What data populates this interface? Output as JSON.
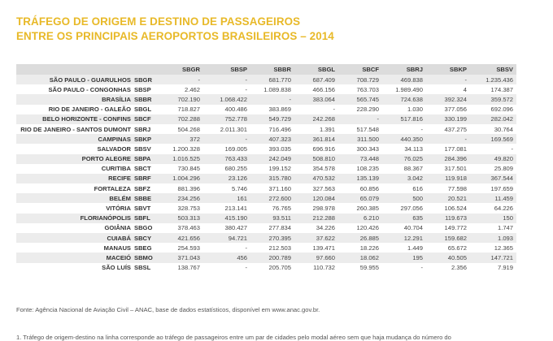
{
  "title": {
    "line1": "TRÁFEGO DE ORIGEM E DESTINO DE PASSAGEIROS",
    "line2": "ENTRE OS PRINCIPAIS AEROPORTOS BRASILEIROS – 2014"
  },
  "columns": [
    "SBGR",
    "SBSP",
    "SBBR",
    "SBGL",
    "SBCF",
    "SBRJ",
    "SBKP",
    "SBSV"
  ],
  "rows": [
    {
      "city": "SÃO PAULO - GUARULHOS",
      "code": "SBGR",
      "values": [
        "-",
        "-",
        "681.770",
        "687.409",
        "708.729",
        "469.838",
        "-",
        "1.235.436"
      ]
    },
    {
      "city": "SÃO PAULO - CONGONHAS",
      "code": "SBSP",
      "values": [
        "2.462",
        "-",
        "1.089.838",
        "466.156",
        "763.703",
        "1.989.490",
        "4",
        "174.387"
      ]
    },
    {
      "city": "BRASÍLIA",
      "code": "SBBR",
      "values": [
        "702.190",
        "1.068.422",
        "-",
        "383.064",
        "565.745",
        "724.638",
        "392.324",
        "359.572"
      ]
    },
    {
      "city": "RIO DE JANEIRO - GALEÃO",
      "code": "SBGL",
      "values": [
        "718.827",
        "400.486",
        "383.869",
        "-",
        "228.290",
        "1.030",
        "377.056",
        "692.096"
      ]
    },
    {
      "city": "BELO HORIZONTE - CONFINS",
      "code": "SBCF",
      "values": [
        "702.288",
        "752.778",
        "549.729",
        "242.268",
        "-",
        "517.816",
        "330.199",
        "282.042"
      ]
    },
    {
      "city": "RIO DE JANEIRO - SANTOS DUMONT",
      "code": "SBRJ",
      "values": [
        "504.268",
        "2.011.301",
        "716.496",
        "1.391",
        "517.548",
        "-",
        "437.275",
        "30.764"
      ]
    },
    {
      "city": "CAMPINAS",
      "code": "SBKP",
      "values": [
        "372",
        "-",
        "407.323",
        "361.814",
        "311.500",
        "440.350",
        "-",
        "169.569"
      ]
    },
    {
      "city": "SALVADOR",
      "code": "SBSV",
      "values": [
        "1.200.328",
        "169.005",
        "393.035",
        "696.916",
        "300.343",
        "34.113",
        "177.081",
        "-"
      ]
    },
    {
      "city": "PORTO ALEGRE",
      "code": "SBPA",
      "values": [
        "1.016.525",
        "763.433",
        "242.049",
        "508.810",
        "73.448",
        "76.025",
        "284.396",
        "49.820"
      ]
    },
    {
      "city": "CURITIBA",
      "code": "SBCT",
      "values": [
        "730.845",
        "680.255",
        "199.152",
        "354.578",
        "108.235",
        "88.367",
        "317.501",
        "25.809"
      ]
    },
    {
      "city": "RECIFE",
      "code": "SBRF",
      "values": [
        "1.004.296",
        "23.126",
        "315.780",
        "470.532",
        "135.139",
        "3.042",
        "119.918",
        "367.544"
      ]
    },
    {
      "city": "FORTALEZA",
      "code": "SBFZ",
      "values": [
        "881.396",
        "5.746",
        "371.160",
        "327.563",
        "60.856",
        "616",
        "77.598",
        "197.659"
      ]
    },
    {
      "city": "BELÉM",
      "code": "SBBE",
      "values": [
        "234.256",
        "161",
        "272.600",
        "120.084",
        "65.079",
        "500",
        "20.521",
        "11.459"
      ]
    },
    {
      "city": "VITÓRIA",
      "code": "SBVT",
      "values": [
        "328.753",
        "213.141",
        "76.765",
        "298.978",
        "260.385",
        "297.056",
        "106.524",
        "64.226"
      ]
    },
    {
      "city": "FLORIANÓPOLIS",
      "code": "SBFL",
      "values": [
        "503.313",
        "415.190",
        "93.511",
        "212.288",
        "6.210",
        "635",
        "119.673",
        "150"
      ]
    },
    {
      "city": "GOIÂNIA",
      "code": "SBGO",
      "values": [
        "378.463",
        "380.427",
        "277.834",
        "34.226",
        "120.426",
        "40.704",
        "149.772",
        "1.747"
      ]
    },
    {
      "city": "CUIABÁ",
      "code": "SBCY",
      "values": [
        "421.656",
        "94.721",
        "270.395",
        "37.622",
        "26.885",
        "12.291",
        "159.682",
        "1.093"
      ]
    },
    {
      "city": "MANAUS",
      "code": "SBEG",
      "values": [
        "254.593",
        "-",
        "212.503",
        "139.471",
        "18.226",
        "1.449",
        "65.672",
        "12.365"
      ]
    },
    {
      "city": "MACEIÓ",
      "code": "SBMO",
      "values": [
        "371.043",
        "456",
        "200.789",
        "97.660",
        "18.062",
        "195",
        "40.505",
        "147.721"
      ]
    },
    {
      "city": "SÃO LUÍS",
      "code": "SBSL",
      "values": [
        "138.767",
        "-",
        "205.705",
        "110.732",
        "59.955",
        "-",
        "2.356",
        "7.919"
      ]
    }
  ],
  "source": "Fonte: Agência Nacional de Aviação Civil – ANAC, base de dados estatísticos, disponível em www.anac.gov.br.",
  "footnote": "1. Tráfego de origem-destino na linha corresponde ao tráfego de passageiros entre um par de cidades pelo modal aéreo sem que haja mudança do número do"
}
